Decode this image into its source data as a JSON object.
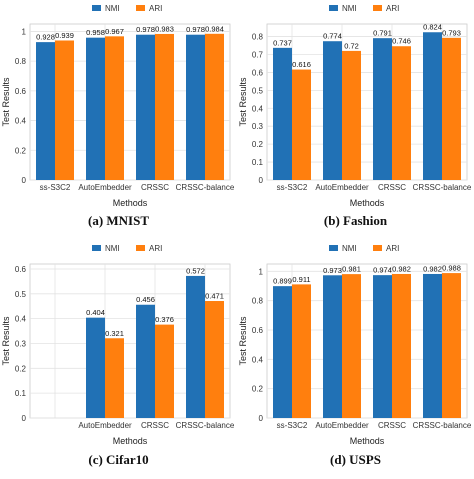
{
  "colors": {
    "NMI": "#2171b5",
    "ARI": "#ff7f0e"
  },
  "chart_data": [
    {
      "type": "bar",
      "caption": "(a) MNIST",
      "categories": [
        "ss-S3C2",
        "AutoEmbedder",
        "CRSSC",
        "CRSSC-balance"
      ],
      "series": [
        {
          "name": "NMI",
          "values": [
            0.928,
            0.958,
            0.978,
            0.978
          ]
        },
        {
          "name": "ARI",
          "values": [
            0.939,
            0.967,
            0.983,
            0.984
          ]
        }
      ],
      "data_labels": [
        [
          "0.928",
          "0.958",
          "0.978",
          "0.978"
        ],
        [
          "0.939",
          "0.967",
          "0.983",
          "0.984"
        ]
      ],
      "xlabel": "Methods",
      "ylabel": "Test Results",
      "ylim": [
        0,
        1.05
      ],
      "yticks": [
        0,
        0.2,
        0.4,
        0.6,
        0.8,
        1.0
      ],
      "ytick_labels": [
        "0",
        "0.2",
        "0.4",
        "0.6",
        "0.8",
        "1"
      ],
      "grid": true,
      "legend": "top"
    },
    {
      "type": "bar",
      "caption": "(b) Fashion",
      "categories": [
        "ss-S3C2",
        "AutoEmbedder",
        "CRSSC",
        "CRSSC-balance"
      ],
      "series": [
        {
          "name": "NMI",
          "values": [
            0.737,
            0.774,
            0.791,
            0.824
          ]
        },
        {
          "name": "ARI",
          "values": [
            0.616,
            0.72,
            0.746,
            0.793
          ]
        }
      ],
      "data_labels": [
        [
          "0.737",
          "0.774",
          "0.791",
          "0.824"
        ],
        [
          "0.616",
          "0.72",
          "0.746",
          "0.793"
        ]
      ],
      "xlabel": "Methods",
      "ylabel": "Test Results",
      "ylim": [
        0,
        0.87
      ],
      "yticks": [
        0,
        0.1,
        0.2,
        0.3,
        0.4,
        0.5,
        0.6,
        0.7,
        0.8
      ],
      "ytick_labels": [
        "0",
        "0.1",
        "0.2",
        "0.3",
        "0.4",
        "0.5",
        "0.6",
        "0.7",
        "0.8"
      ],
      "grid": true,
      "legend": "top"
    },
    {
      "type": "bar",
      "caption": "(c) Cifar10",
      "categories": [
        "",
        "AutoEmbedder",
        "CRSSC",
        "CRSSC-balance"
      ],
      "series": [
        {
          "name": "NMI",
          "values": [
            null,
            0.404,
            0.456,
            0.572
          ]
        },
        {
          "name": "ARI",
          "values": [
            null,
            0.321,
            0.376,
            0.471
          ]
        }
      ],
      "data_labels": [
        [
          "",
          "0.404",
          "0.456",
          "0.572"
        ],
        [
          "",
          "0.321",
          "0.376",
          "0.471"
        ]
      ],
      "xlabel": "Methods",
      "ylabel": "Test Results",
      "ylim": [
        0,
        0.62
      ],
      "yticks": [
        0,
        0.1,
        0.2,
        0.3,
        0.4,
        0.5,
        0.6
      ],
      "ytick_labels": [
        "0",
        "0.1",
        "0.2",
        "0.3",
        "0.4",
        "0.5",
        "0.6"
      ],
      "grid": true,
      "legend": "top"
    },
    {
      "type": "bar",
      "caption": "(d) USPS",
      "categories": [
        "ss-S3C2",
        "AutoEmbedder",
        "CRSSC",
        "CRSSC-balance"
      ],
      "series": [
        {
          "name": "NMI",
          "values": [
            0.899,
            0.973,
            0.974,
            0.982
          ]
        },
        {
          "name": "ARI",
          "values": [
            0.911,
            0.981,
            0.982,
            0.988
          ]
        }
      ],
      "data_labels": [
        [
          "0.899",
          "0.973",
          "0.974",
          "0.982"
        ],
        [
          "0.911",
          "0.981",
          "0.982",
          "0.988"
        ]
      ],
      "xlabel": "Methods",
      "ylabel": "Test Results",
      "ylim": [
        0,
        1.05
      ],
      "yticks": [
        0,
        0.2,
        0.4,
        0.6,
        0.8,
        1.0
      ],
      "ytick_labels": [
        "0",
        "0.2",
        "0.4",
        "0.6",
        "0.8",
        "1"
      ],
      "grid": true,
      "legend": "top"
    }
  ]
}
